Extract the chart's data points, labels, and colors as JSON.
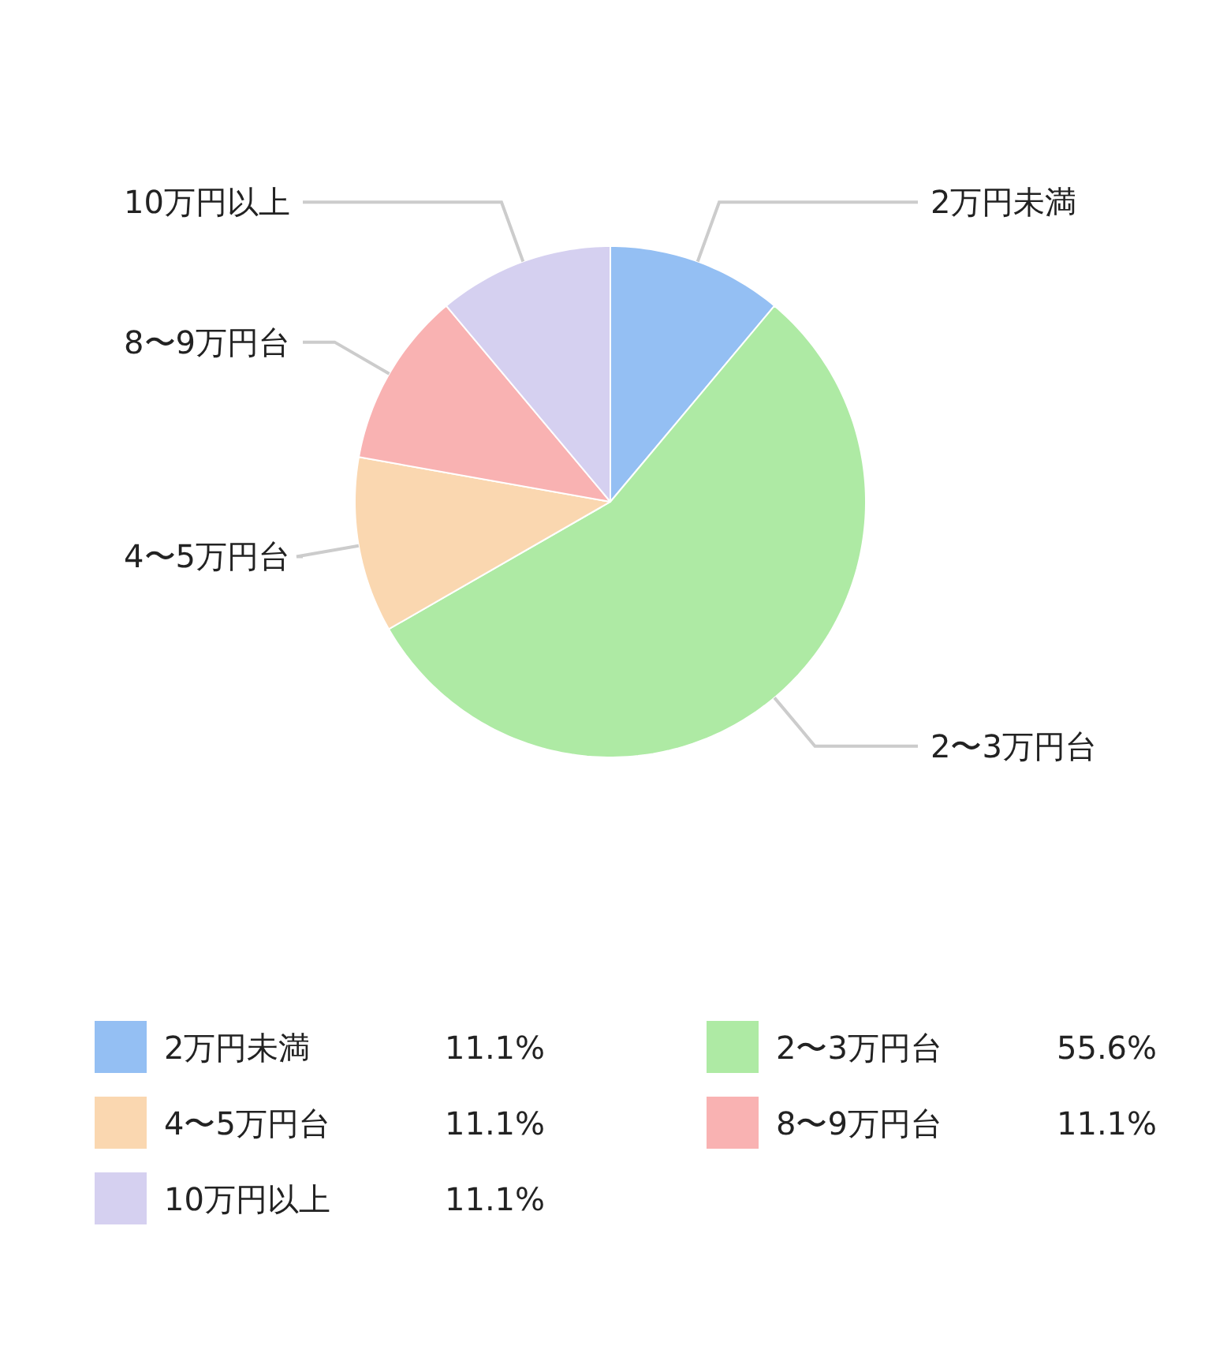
{
  "chart_data": {
    "type": "pie",
    "categories": [
      "2万円未満",
      "2〜3万円台",
      "4〜5万円台",
      "8〜9万円台",
      "10万円以上"
    ],
    "values": [
      11.1,
      55.6,
      11.1,
      11.1,
      11.1
    ],
    "colors": [
      "#94bff3",
      "#aeeaa4",
      "#fad7b0",
      "#f9b2b2",
      "#d5d0f0"
    ],
    "value_labels": [
      "11.1%",
      "55.6%",
      "11.1%",
      "11.1%",
      "11.1%"
    ],
    "legend": "bottom"
  }
}
